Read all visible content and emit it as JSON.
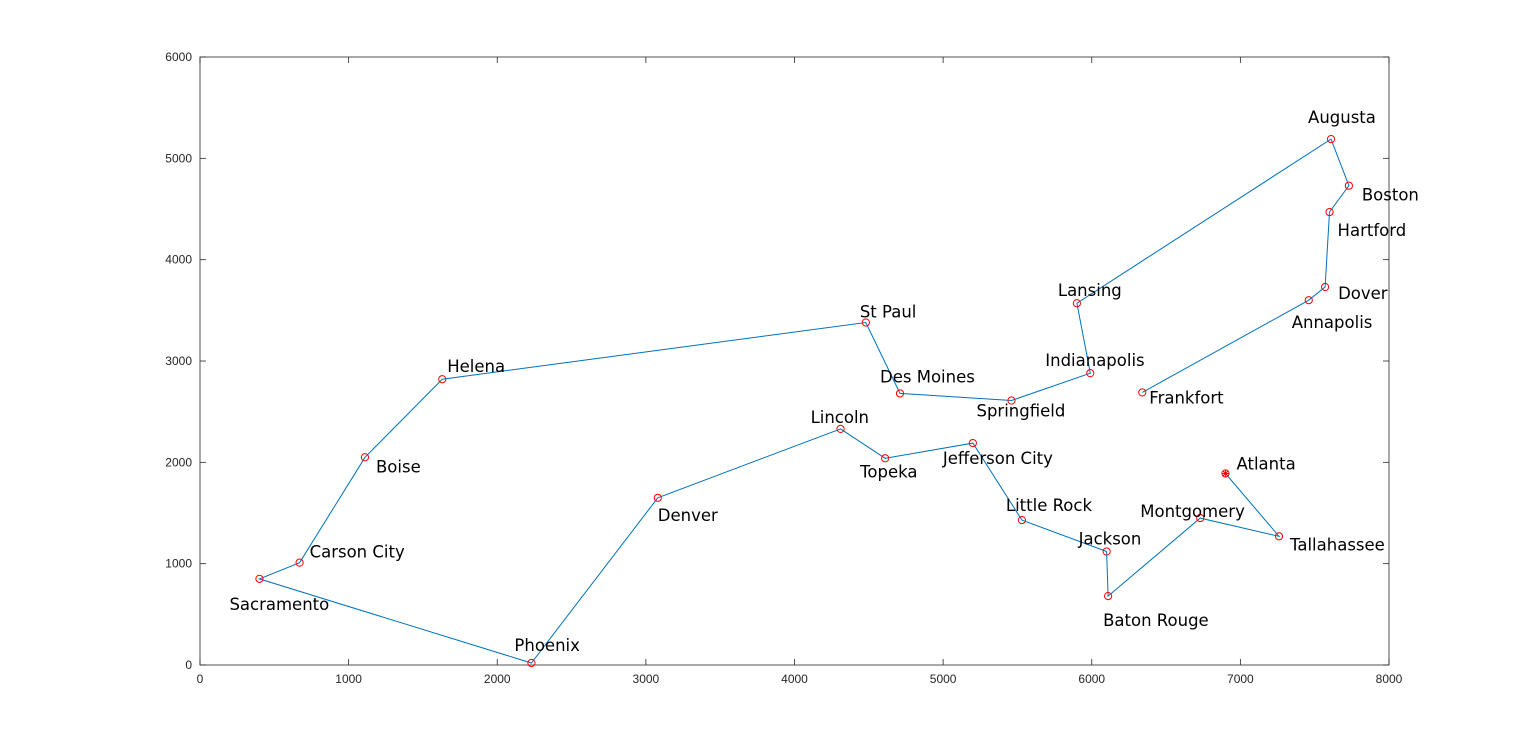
{
  "chart_data": {
    "type": "line",
    "title": "",
    "xlabel": "",
    "ylabel": "",
    "xlim": [
      0,
      8000
    ],
    "ylim": [
      0,
      6000
    ],
    "xticks": [
      0,
      1000,
      2000,
      3000,
      4000,
      5000,
      6000,
      7000,
      8000
    ],
    "yticks": [
      0,
      1000,
      2000,
      3000,
      4000,
      5000,
      6000
    ],
    "xtick_labels": [
      "0",
      "1000",
      "2000",
      "3000",
      "4000",
      "5000",
      "6000",
      "7000",
      "8000"
    ],
    "ytick_labels": [
      "0",
      "1000",
      "2000",
      "3000",
      "4000",
      "5000",
      "6000"
    ],
    "grid": false,
    "line_color": "#0072BD",
    "marker_color": "#FF0000",
    "highlight_city": "Atlanta",
    "route": [
      {
        "name": "Atlanta",
        "x": 6900,
        "y": 1890
      },
      {
        "name": "Tallahassee",
        "x": 7260,
        "y": 1270
      },
      {
        "name": "Montgomery",
        "x": 6730,
        "y": 1450
      },
      {
        "name": "Baton Rouge",
        "x": 6110,
        "y": 680
      },
      {
        "name": "Jackson",
        "x": 6100,
        "y": 1120
      },
      {
        "name": "Little Rock",
        "x": 5530,
        "y": 1430
      },
      {
        "name": "Jefferson City",
        "x": 5200,
        "y": 2190
      },
      {
        "name": "Topeka",
        "x": 4610,
        "y": 2040
      },
      {
        "name": "Lincoln",
        "x": 4310,
        "y": 2330
      },
      {
        "name": "Denver",
        "x": 3080,
        "y": 1650
      },
      {
        "name": "Phoenix",
        "x": 2230,
        "y": 20
      },
      {
        "name": "Sacramento",
        "x": 400,
        "y": 850
      },
      {
        "name": "Carson City",
        "x": 670,
        "y": 1010
      },
      {
        "name": "Boise",
        "x": 1110,
        "y": 2050
      },
      {
        "name": "Helena",
        "x": 1630,
        "y": 2820
      },
      {
        "name": "St Paul",
        "x": 4480,
        "y": 3380
      },
      {
        "name": "Des Moines",
        "x": 4710,
        "y": 2680
      },
      {
        "name": "Springfield",
        "x": 5460,
        "y": 2610
      },
      {
        "name": "Indianapolis",
        "x": 5990,
        "y": 2880
      },
      {
        "name": "Lansing",
        "x": 5900,
        "y": 3570
      },
      {
        "name": "Augusta",
        "x": 7610,
        "y": 5190
      },
      {
        "name": "Boston",
        "x": 7730,
        "y": 4730
      },
      {
        "name": "Hartford",
        "x": 7600,
        "y": 4470
      },
      {
        "name": "Dover",
        "x": 7570,
        "y": 3730
      },
      {
        "name": "Annapolis",
        "x": 7460,
        "y": 3600
      },
      {
        "name": "Frankfort",
        "x": 6340,
        "y": 2690
      }
    ]
  }
}
